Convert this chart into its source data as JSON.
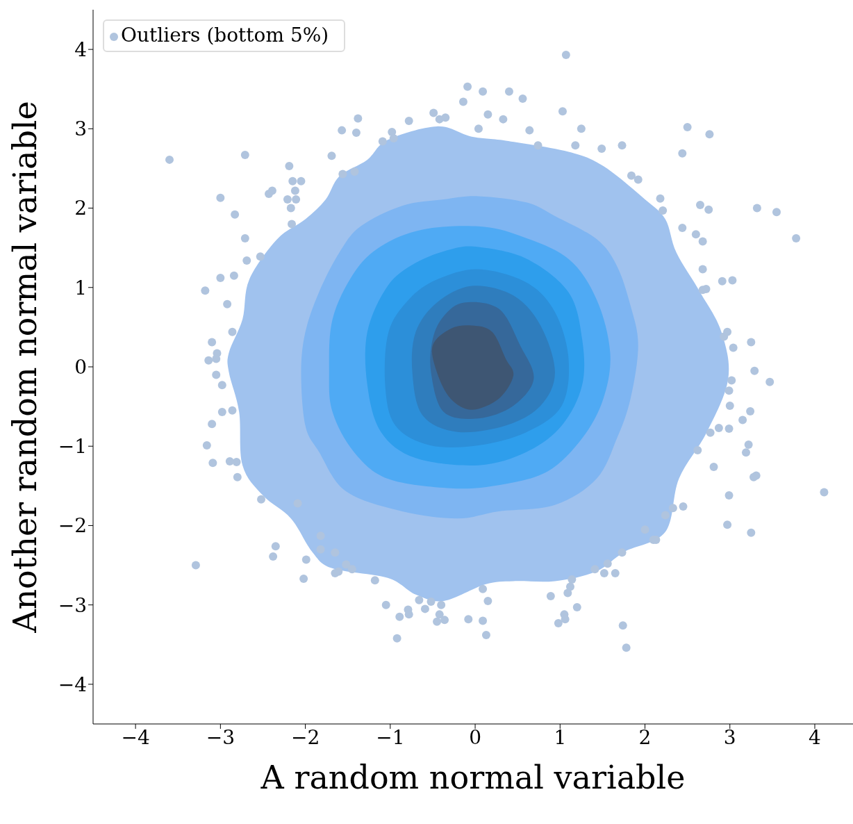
{
  "chart_data": {
    "type": "scatter",
    "xlabel": "A random normal variable",
    "ylabel": "Another random normal variable",
    "xlim": [
      -4.5,
      4.45
    ],
    "ylim": [
      -4.5,
      4.5
    ],
    "xticks": [
      {
        "value": -4,
        "label": "−4"
      },
      {
        "value": -3,
        "label": "−3"
      },
      {
        "value": -2,
        "label": "−2"
      },
      {
        "value": -1,
        "label": "−1"
      },
      0,
      1,
      2,
      3,
      4
    ],
    "yticks": [
      {
        "value": -4,
        "label": "−4"
      },
      {
        "value": -3,
        "label": "−3"
      },
      {
        "value": -2,
        "label": "−2"
      },
      {
        "value": -1,
        "label": "−1"
      },
      0,
      1,
      2,
      3,
      4
    ],
    "grid": false,
    "legend": "top left",
    "series": [
      {
        "type": "area",
        "color": "#a0c2ee",
        "x": [
          -0.45,
          -0.04,
          0.36,
          1.1,
          1.51,
          2.0,
          2.24,
          2.37,
          2.65,
          2.9,
          2.98,
          2.73,
          2.4,
          2.24,
          1.76,
          1.42,
          0.94,
          0.45,
          0.12,
          -0.37,
          -0.7,
          -1.03,
          -1.68,
          -1.92,
          -2.17,
          -2.5,
          -2.74,
          -2.78,
          -2.9,
          -2.9,
          -2.74,
          -2.66,
          -2.33,
          -2.0,
          -1.76,
          -1.6,
          -1.27,
          -1.03
        ],
        "values": [
          3.03,
          2.9,
          2.85,
          2.71,
          2.53,
          2.11,
          1.86,
          1.44,
          0.94,
          0.44,
          -0.15,
          -0.82,
          -1.41,
          -2.08,
          -2.33,
          -2.58,
          -2.7,
          -2.7,
          -2.74,
          -2.95,
          -2.87,
          -2.66,
          -2.54,
          -2.33,
          -1.91,
          -1.62,
          -1.24,
          -0.57,
          -0.07,
          0.18,
          0.6,
          1.1,
          1.61,
          1.86,
          2.11,
          2.4,
          2.61,
          2.86
        ]
      },
      {
        "type": "area",
        "color": "#7eb5f2",
        "x": [
          0.04,
          0.61,
          0.94,
          1.43,
          1.67,
          1.83,
          1.92,
          1.83,
          1.67,
          1.43,
          0.94,
          0.28,
          -0.21,
          -0.86,
          -1.52,
          -1.84,
          -2.0,
          -2.05,
          -2.0,
          -1.84,
          -1.6,
          -1.35,
          -0.86,
          -0.37
        ],
        "values": [
          2.15,
          2.07,
          1.9,
          1.61,
          1.27,
          0.77,
          0.27,
          -0.4,
          -0.9,
          -1.41,
          -1.74,
          -1.82,
          -1.91,
          -1.82,
          -1.57,
          -1.07,
          -0.74,
          -0.07,
          0.44,
          0.94,
          1.44,
          1.77,
          2.03,
          2.11
        ]
      },
      {
        "type": "area",
        "color": "#4faaf4",
        "x": [
          0.04,
          0.53,
          1.1,
          1.43,
          1.59,
          1.51,
          1.26,
          0.85,
          0.28,
          -0.29,
          -1.03,
          -1.43,
          -1.68,
          -1.72,
          -1.68,
          -1.43,
          -1.11,
          -0.62
        ],
        "values": [
          1.77,
          1.65,
          1.36,
          0.85,
          0.18,
          -0.4,
          -0.9,
          -1.32,
          -1.49,
          -1.53,
          -1.41,
          -1.07,
          -0.57,
          -0.07,
          0.6,
          1.18,
          1.52,
          1.73
        ]
      },
      {
        "type": "area",
        "color": "#2e9eec",
        "x": [
          0.04,
          0.61,
          1.1,
          1.26,
          1.26,
          1.02,
          0.61,
          0.04,
          -0.7,
          -1.11,
          -1.27,
          -1.27,
          -1.03,
          -0.7,
          -0.29
        ],
        "values": [
          1.51,
          1.36,
          0.94,
          0.35,
          -0.23,
          -0.74,
          -1.07,
          -1.24,
          -1.15,
          -0.82,
          -0.23,
          0.44,
          1.02,
          1.31,
          1.48
        ]
      },
      {
        "type": "area",
        "color": "#2c8fd9",
        "x": [
          0.04,
          0.61,
          0.94,
          1.1,
          1.02,
          0.61,
          0.04,
          -0.53,
          -0.94,
          -1.06,
          -1.02,
          -0.78,
          -0.45
        ],
        "values": [
          1.23,
          1.06,
          0.69,
          0.1,
          -0.49,
          -0.82,
          -0.99,
          -0.99,
          -0.74,
          -0.23,
          0.44,
          0.85,
          1.1
        ]
      },
      {
        "type": "area",
        "color": "#2f7dbd",
        "x": [
          -0.04,
          0.45,
          0.77,
          0.94,
          0.77,
          0.36,
          -0.21,
          -0.62,
          -0.74,
          -0.7,
          -0.45
        ],
        "values": [
          1.02,
          0.9,
          0.52,
          -0.07,
          -0.49,
          -0.74,
          -0.82,
          -0.61,
          -0.07,
          0.44,
          0.81
        ]
      },
      {
        "type": "area",
        "color": "#36689a",
        "x": [
          -0.13,
          0.28,
          0.53,
          0.69,
          0.45,
          0.04,
          -0.37,
          -0.52,
          -0.5,
          -0.37
        ],
        "values": [
          0.81,
          0.73,
          0.27,
          -0.15,
          -0.49,
          -0.65,
          -0.57,
          -0.07,
          0.35,
          0.64
        ]
      },
      {
        "type": "area",
        "color": "#3e5673",
        "x": [
          -0.04,
          0.2,
          0.36,
          0.45,
          0.28,
          -0.04,
          -0.29,
          -0.45,
          -0.5,
          -0.29
        ],
        "values": [
          0.52,
          0.44,
          0.1,
          -0.11,
          -0.4,
          -0.54,
          -0.4,
          -0.07,
          0.27,
          0.48
        ]
      },
      {
        "name": "Outliers (bottom 5%)",
        "color": "#b0c4de",
        "marker": "circle",
        "x": [
          1.07,
          -0.09,
          0.09,
          0.4,
          0.56,
          -0.14,
          -0.49,
          -0.42,
          -0.35,
          0.15,
          0.33,
          1.03,
          -1.38,
          -1.57,
          -1.4,
          -0.98,
          -0.96,
          -1.09,
          -0.78,
          0.04,
          0.64,
          0.74,
          1.25,
          1.18,
          1.49,
          1.73,
          2.5,
          2.76,
          2.44,
          -3.6,
          -2.71,
          -1.69,
          -2.19,
          -1.56,
          -1.42,
          -2.15,
          -2.05,
          -2.12,
          -2.43,
          -2.39,
          -2.21,
          -2.11,
          -2.17,
          -3.0,
          -2.83,
          1.84,
          1.92,
          2.18,
          2.65,
          2.75,
          3.32,
          3.55,
          2.21,
          2.44,
          2.6,
          2.68,
          3.78,
          -2.16,
          -2.71,
          -2.69,
          -2.53,
          2.68,
          2.91,
          3.03,
          -3.0,
          -2.84,
          -3.18,
          -2.92,
          2.68,
          2.72,
          -2.86,
          -3.1,
          -3.04,
          -3.14,
          -3.05,
          2.97,
          2.93,
          3.25,
          3.04,
          -3.05,
          -2.98,
          3.29,
          3.47,
          3.02,
          2.99,
          -2.98,
          -2.86,
          3.0,
          3.24,
          3.15,
          2.87,
          2.99,
          -3.1,
          -3.16,
          2.77,
          3.22,
          3.19,
          2.62,
          -3.09,
          -2.89,
          -2.81,
          -2.8,
          2.81,
          3.31,
          3.28,
          4.11,
          -2.52,
          2.99,
          -2.09,
          2.45,
          2.33,
          2.24,
          2.97,
          3.25,
          2.0,
          2.1,
          2.13,
          -1.82,
          -2.35,
          -2.38,
          -1.82,
          -1.99,
          -1.65,
          -1.61,
          -1.65,
          -1.52,
          -1.45,
          -3.29,
          -2.02,
          -1.18,
          1.41,
          1.52,
          1.65,
          1.56,
          1.73,
          1.14,
          1.12,
          1.09,
          0.89,
          0.09,
          0.15,
          -1.05,
          -0.66,
          -0.52,
          -0.4,
          -0.79,
          -0.59,
          -0.78,
          -0.89,
          -0.42,
          -0.36,
          -0.45,
          -0.08,
          0.09,
          1.2,
          1.05,
          1.06,
          0.98,
          -0.92,
          0.13,
          1.74,
          1.78
        ],
        "values": [
          3.93,
          3.53,
          3.47,
          3.47,
          3.38,
          3.34,
          3.2,
          3.12,
          3.14,
          3.18,
          3.12,
          3.22,
          3.13,
          2.98,
          2.95,
          2.96,
          2.88,
          2.84,
          3.1,
          3.0,
          2.98,
          2.79,
          3.0,
          2.79,
          2.75,
          2.79,
          3.02,
          2.93,
          2.69,
          2.61,
          2.67,
          2.66,
          2.53,
          2.43,
          2.46,
          2.34,
          2.34,
          2.22,
          2.18,
          2.22,
          2.11,
          2.11,
          2.0,
          2.13,
          1.92,
          2.41,
          2.36,
          2.12,
          2.04,
          1.98,
          2.0,
          1.95,
          1.97,
          1.75,
          1.67,
          1.58,
          1.62,
          1.8,
          1.62,
          1.34,
          1.39,
          1.23,
          1.08,
          1.09,
          1.12,
          1.15,
          0.96,
          0.79,
          0.97,
          0.98,
          0.44,
          0.31,
          0.17,
          0.08,
          0.1,
          0.44,
          0.38,
          0.31,
          0.24,
          -0.1,
          -0.23,
          -0.05,
          -0.19,
          -0.17,
          -0.3,
          -0.57,
          -0.55,
          -0.49,
          -0.56,
          -0.67,
          -0.77,
          -0.78,
          -0.72,
          -0.99,
          -0.83,
          -0.98,
          -1.08,
          -1.05,
          -1.21,
          -1.19,
          -1.2,
          -1.39,
          -1.26,
          -1.37,
          -1.39,
          -1.58,
          -1.67,
          -1.62,
          -1.72,
          -1.76,
          -1.78,
          -1.87,
          -1.99,
          -2.09,
          -2.05,
          -2.18,
          -2.18,
          -2.13,
          -2.26,
          -2.39,
          -2.3,
          -2.43,
          -2.34,
          -2.58,
          -2.6,
          -2.49,
          -2.55,
          -2.5,
          -2.67,
          -2.69,
          -2.55,
          -2.6,
          -2.6,
          -2.48,
          -2.34,
          -2.68,
          -2.77,
          -2.85,
          -2.89,
          -2.8,
          -2.95,
          -3.0,
          -2.94,
          -2.96,
          -3.0,
          -3.06,
          -3.05,
          -3.12,
          -3.15,
          -3.12,
          -3.19,
          -3.21,
          -3.18,
          -3.2,
          -3.03,
          -3.12,
          -3.18,
          -3.23,
          -3.42,
          -3.38,
          -3.26,
          -3.54
        ]
      }
    ]
  }
}
